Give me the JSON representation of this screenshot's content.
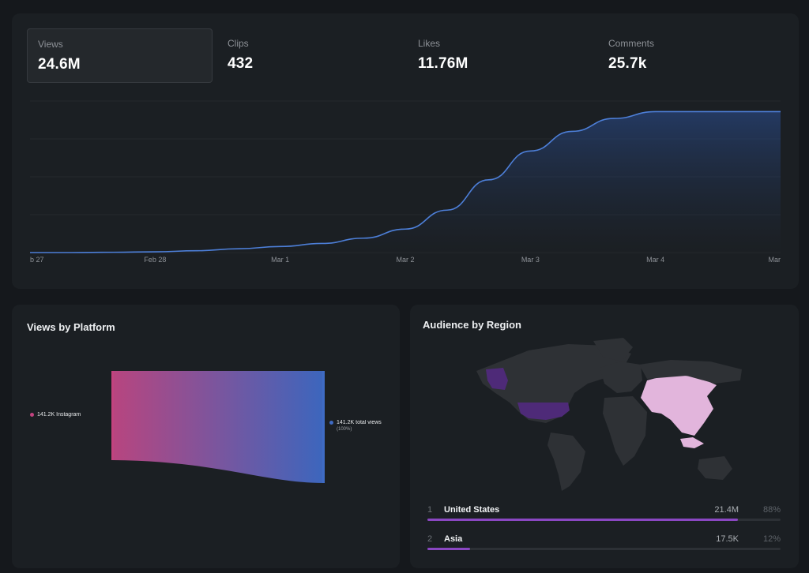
{
  "stats": [
    {
      "label": "Views",
      "value": "24.6M",
      "active": true
    },
    {
      "label": "Clips",
      "value": "432",
      "active": false
    },
    {
      "label": "Likes",
      "value": "11.76M",
      "active": false
    },
    {
      "label": "Comments",
      "value": "25.7k",
      "active": false
    }
  ],
  "chart_data": {
    "type": "area",
    "x_tick_labels": [
      "b 27",
      "Feb 28",
      "Mar 1",
      "Mar 2",
      "Mar 3",
      "Mar 4",
      "Mar"
    ],
    "values": [
      0.0,
      0.0,
      0.2,
      0.5,
      1.2,
      2.5,
      4.0,
      6.0,
      9.5,
      15.5,
      28.0,
      48.0,
      67.0,
      80.0,
      88.5,
      93.0,
      93.0,
      93.0,
      93.0
    ],
    "ylim": [
      0,
      100
    ],
    "grid": true,
    "color": "#4d7fd8"
  },
  "platform": {
    "title": "Views by Platform",
    "source_label": "141.2K Instagram",
    "target_label": "141.2K total views",
    "target_sub": "(100%)",
    "source_color": "#c2437f",
    "target_color": "#3f6bc4"
  },
  "region": {
    "title": "Audience by Region",
    "rows": [
      {
        "index": "1",
        "name": "United States",
        "value": "21.4M",
        "pct": "88%",
        "fill": 0.88
      },
      {
        "index": "2",
        "name": "Asia",
        "value": "17.5K",
        "pct": "12%",
        "fill": 0.12
      }
    ],
    "colors": {
      "us": "#4e2a78",
      "alaska": "#4e2a78",
      "asia": "#e2b5dc",
      "land": "#2e3135"
    }
  }
}
